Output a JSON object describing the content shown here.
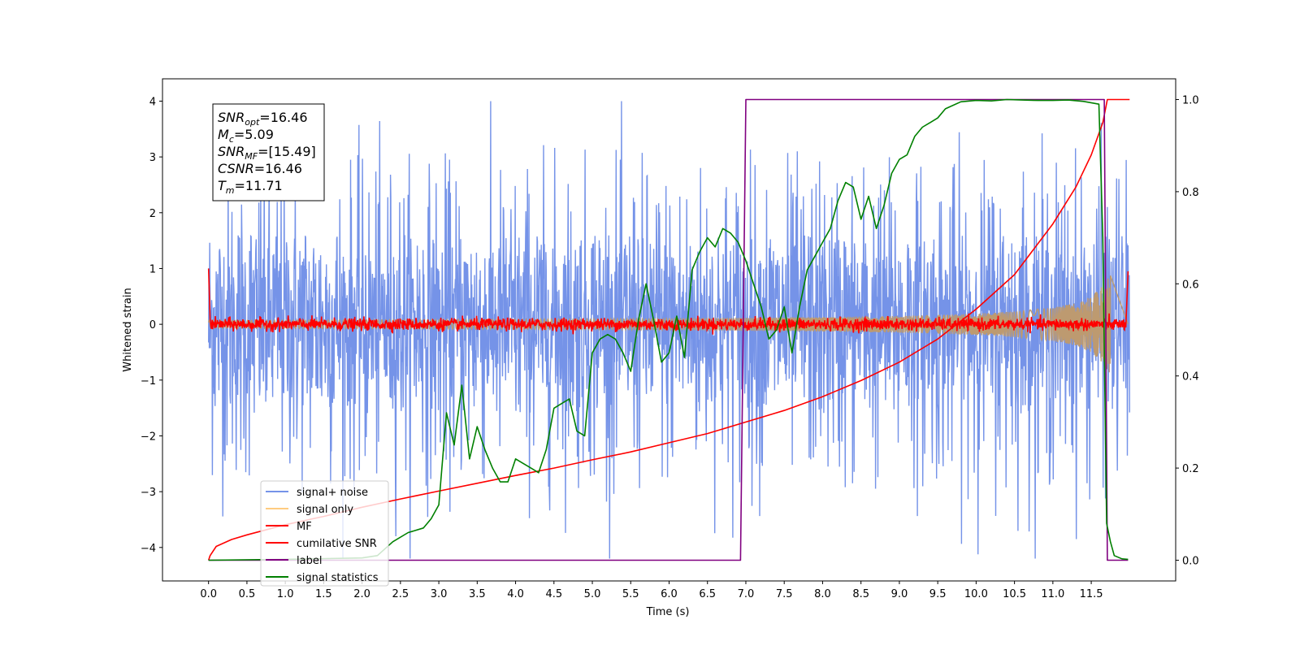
{
  "chart_data": {
    "type": "line",
    "xlabel": "Time (s)",
    "ylabel": "Whitened strain",
    "xlim": [
      -0.6,
      12.6
    ],
    "ylim": [
      -4.6,
      4.4
    ],
    "y2lim": [
      -0.045,
      1.045
    ],
    "x_ticks": [
      "0.0",
      "0.5",
      "1.0",
      "1.5",
      "2.0",
      "2.5",
      "3.0",
      "3.5",
      "4.0",
      "4.5",
      "5.0",
      "5.5",
      "6.0",
      "6.5",
      "7.0",
      "7.5",
      "8.0",
      "8.5",
      "9.0",
      "9.5",
      "10.0",
      "10.5",
      "11.0",
      "11.5"
    ],
    "y_ticks": [
      "4",
      "3",
      "2",
      "1",
      "0",
      "−1",
      "−2",
      "−3",
      "−4"
    ],
    "y2_ticks": [
      "1.0",
      "0.8",
      "0.6",
      "0.4",
      "0.2",
      "0.0"
    ],
    "annotation": {
      "lines": [
        {
          "sym": "SNR",
          "sub": "opt",
          "val": "=16.46"
        },
        {
          "sym": "M",
          "sub": "c",
          "val": "=5.09"
        },
        {
          "sym": "SNR",
          "sub": "MF",
          "val": "=[15.49]"
        },
        {
          "sym": "CSNR",
          "sub": "",
          "val": "=16.46"
        },
        {
          "sym": "T",
          "sub": "m",
          "val": "=11.71"
        }
      ]
    },
    "legend": {
      "position": "lower left",
      "items": [
        "signal+ noise",
        "signal only",
        "MF",
        "cumilative SNR",
        "label",
        "signal statistics"
      ]
    },
    "series": [
      {
        "name": "signal+ noise",
        "axis": "left",
        "color": "#7593e8",
        "description_stats": {
          "x_range": [
            0,
            12.0
          ],
          "typical_amplitude": 1.8,
          "peak_max": 4.0,
          "peak_min": -4.2
        }
      },
      {
        "name": "signal only",
        "axis": "left",
        "color": "#bd9a70",
        "envelope": {
          "x": [
            0,
            2,
            4,
            6,
            8,
            9,
            10,
            10.5,
            11,
            11.3,
            11.5,
            11.65,
            11.75
          ],
          "amp": [
            0.07,
            0.08,
            0.09,
            0.1,
            0.13,
            0.15,
            0.19,
            0.23,
            0.3,
            0.38,
            0.5,
            0.7,
            0.9
          ]
        }
      },
      {
        "name": "MF",
        "axis": "left",
        "color": "#ff0000",
        "noise_amplitude": 0.12
      },
      {
        "name": "cumilative SNR",
        "axis": "right",
        "color": "#ff0000",
        "x": [
          0.0,
          0.02,
          0.1,
          0.3,
          0.5,
          1.0,
          1.5,
          2.0,
          2.5,
          3.0,
          3.5,
          4.0,
          4.5,
          5.0,
          5.5,
          6.0,
          6.5,
          7.0,
          7.5,
          8.0,
          8.5,
          9.0,
          9.5,
          10.0,
          10.5,
          11.0,
          11.3,
          11.5,
          11.65,
          11.71,
          12.0
        ],
        "y": [
          0.0,
          0.01,
          0.03,
          0.045,
          0.055,
          0.077,
          0.095,
          0.115,
          0.133,
          0.15,
          0.167,
          0.184,
          0.2,
          0.218,
          0.235,
          0.255,
          0.275,
          0.3,
          0.325,
          0.355,
          0.39,
          0.43,
          0.48,
          0.545,
          0.62,
          0.73,
          0.81,
          0.88,
          0.95,
          1.0,
          1.0
        ]
      },
      {
        "name": "label",
        "axis": "right",
        "color": "#800080",
        "x": [
          0.0,
          6.93,
          7.0,
          11.67,
          11.71,
          11.98
        ],
        "y": [
          0.0,
          0.0,
          1.0,
          1.0,
          0.0,
          0.0
        ]
      },
      {
        "name": "signal statistics",
        "axis": "right",
        "color": "#008000",
        "x": [
          0.0,
          1.0,
          2.0,
          2.2,
          2.4,
          2.6,
          2.8,
          2.9,
          3.0,
          3.1,
          3.2,
          3.3,
          3.4,
          3.5,
          3.6,
          3.7,
          3.8,
          3.9,
          4.0,
          4.1,
          4.2,
          4.3,
          4.4,
          4.5,
          4.6,
          4.7,
          4.8,
          4.9,
          5.0,
          5.1,
          5.2,
          5.3,
          5.4,
          5.5,
          5.6,
          5.7,
          5.8,
          5.9,
          6.0,
          6.1,
          6.2,
          6.3,
          6.4,
          6.5,
          6.6,
          6.7,
          6.8,
          6.9,
          7.0,
          7.1,
          7.2,
          7.3,
          7.4,
          7.5,
          7.6,
          7.7,
          7.8,
          7.9,
          8.0,
          8.1,
          8.2,
          8.3,
          8.4,
          8.5,
          8.6,
          8.7,
          8.8,
          8.9,
          9.0,
          9.1,
          9.2,
          9.3,
          9.4,
          9.5,
          9.6,
          9.8,
          10.0,
          10.2,
          10.4,
          10.6,
          10.8,
          11.0,
          11.2,
          11.4,
          11.6,
          11.65,
          11.7,
          11.75,
          11.8,
          11.9,
          11.98
        ],
        "y": [
          0.0,
          0.002,
          0.005,
          0.01,
          0.04,
          0.06,
          0.07,
          0.09,
          0.12,
          0.32,
          0.25,
          0.38,
          0.22,
          0.29,
          0.24,
          0.2,
          0.17,
          0.17,
          0.22,
          0.21,
          0.2,
          0.19,
          0.24,
          0.33,
          0.34,
          0.35,
          0.28,
          0.27,
          0.45,
          0.48,
          0.49,
          0.48,
          0.45,
          0.41,
          0.52,
          0.6,
          0.52,
          0.43,
          0.45,
          0.53,
          0.44,
          0.63,
          0.67,
          0.7,
          0.68,
          0.72,
          0.71,
          0.69,
          0.65,
          0.6,
          0.55,
          0.48,
          0.5,
          0.55,
          0.45,
          0.55,
          0.63,
          0.66,
          0.69,
          0.72,
          0.78,
          0.82,
          0.81,
          0.74,
          0.79,
          0.72,
          0.77,
          0.84,
          0.87,
          0.88,
          0.92,
          0.94,
          0.95,
          0.96,
          0.98,
          0.995,
          0.998,
          0.997,
          1.0,
          0.999,
          0.998,
          0.998,
          0.999,
          0.996,
          0.99,
          0.7,
          0.08,
          0.04,
          0.01,
          0.003,
          0.002
        ]
      }
    ]
  }
}
